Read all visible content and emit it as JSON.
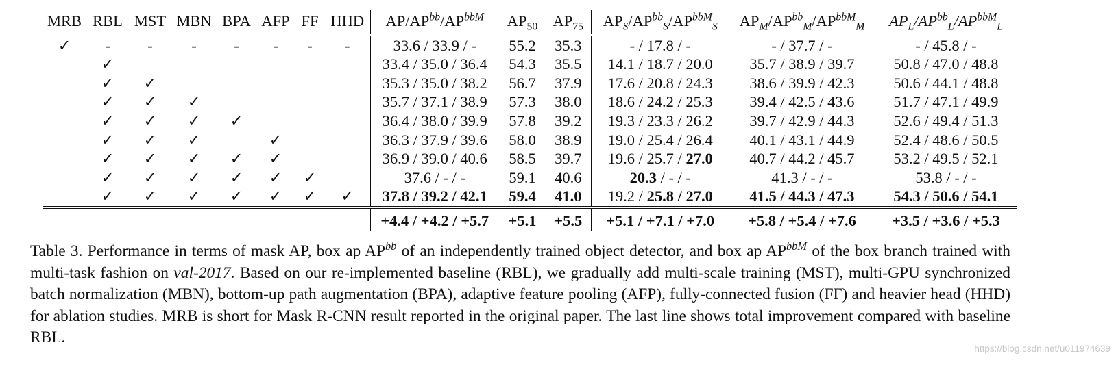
{
  "table": {
    "method_headers": [
      "MRB",
      "RBL",
      "MST",
      "MBN",
      "BPA",
      "AFP",
      "FF",
      "HHD"
    ],
    "metric_headers": {
      "ap": {
        "base": "AP",
        "sep1": "/AP",
        "sup1": "bb",
        "sep2": "/AP",
        "sup2": "bbM"
      },
      "ap50": {
        "base": "AP",
        "sub": "50"
      },
      "ap75": {
        "base": "AP",
        "sub": "75"
      },
      "aps": {
        "base": "AP",
        "sub": "S",
        "sep1": "/AP",
        "sup1": "bb",
        "sub1": "S",
        "sep2": "/AP",
        "sup2": "bbM",
        "sub2": "S"
      },
      "apm": {
        "base": "AP",
        "sub": "M",
        "sep1": "/AP",
        "sup1": "bb",
        "sub1": "M",
        "sep2": "/AP",
        "sup2": "bbM",
        "sub2": "M"
      },
      "apl": {
        "base": "AP",
        "sub": "L",
        "sep1": "/AP",
        "sup1": "bb",
        "sub1": "L",
        "sep2": "/AP",
        "sup2": "bbM",
        "sub2": "L"
      }
    },
    "check_mark": "✓",
    "rows": [
      {
        "methods": [
          "✓",
          "-",
          "-",
          "-",
          "-",
          "-",
          "-",
          "-"
        ],
        "ap": "33.6 / 33.9 /   -",
        "ap50": "55.2",
        "ap75": "35.3",
        "aps": "-   / 17.8 /   -",
        "apm": "-   / 37.7 /   -",
        "apl": "-   / 45.8 /   -"
      },
      {
        "methods": [
          "",
          "✓",
          "",
          "",
          "",
          "",
          "",
          ""
        ],
        "ap": "33.4 / 35.0 / 36.4",
        "ap50": "54.3",
        "ap75": "35.5",
        "aps": "14.1 / 18.7 / 20.0",
        "apm": "35.7 / 38.9 / 39.7",
        "apl": "50.8 / 47.0 / 48.8"
      },
      {
        "methods": [
          "",
          "✓",
          "✓",
          "",
          "",
          "",
          "",
          ""
        ],
        "ap": "35.3 / 35.0 / 38.2",
        "ap50": "56.7",
        "ap75": "37.9",
        "aps": "17.6 / 20.8 / 24.3",
        "apm": "38.6 / 39.9 / 42.3",
        "apl": "50.6 / 44.1 / 48.8"
      },
      {
        "methods": [
          "",
          "✓",
          "✓",
          "✓",
          "",
          "",
          "",
          ""
        ],
        "ap": "35.7 / 37.1 / 38.9",
        "ap50": "57.3",
        "ap75": "38.0",
        "aps": "18.6 / 24.2 / 25.3",
        "apm": "39.4 / 42.5 / 43.6",
        "apl": "51.7 / 47.1 / 49.9"
      },
      {
        "methods": [
          "",
          "✓",
          "✓",
          "✓",
          "✓",
          "",
          "",
          ""
        ],
        "ap": "36.4 / 38.0 / 39.9",
        "ap50": "57.8",
        "ap75": "39.2",
        "aps": "19.3 / 23.3 / 26.2",
        "apm": "39.7 / 42.9 / 44.3",
        "apl": "52.6 / 49.4 / 51.3"
      },
      {
        "methods": [
          "",
          "✓",
          "✓",
          "✓",
          "",
          "✓",
          "",
          ""
        ],
        "ap": "36.3 / 37.9 / 39.6",
        "ap50": "58.0",
        "ap75": "38.9",
        "aps": "19.0 / 25.4 / 26.4",
        "apm": "40.1 / 43.1 / 44.9",
        "apl": "52.4 / 48.6 / 50.5"
      },
      {
        "methods": [
          "",
          "✓",
          "✓",
          "✓",
          "✓",
          "✓",
          "",
          ""
        ],
        "ap": "36.9 / 39.0 / 40.6",
        "ap50": "58.5",
        "ap75": "39.7",
        "aps_a": "19.6 / 25.7 / ",
        "aps_b": "27.0",
        "apm": "40.7 / 44.2 / 45.7",
        "apl": "53.2 / 49.5 / 52.1"
      },
      {
        "methods": [
          "",
          "✓",
          "✓",
          "✓",
          "✓",
          "✓",
          "✓",
          ""
        ],
        "ap": "37.6 /   -   /   -",
        "ap50": "59.1",
        "ap75": "40.6",
        "aps_a": "20.3",
        "aps_b": " /   -   /   -",
        "apm": "41.3 /   -   /   -",
        "apl": "53.8 /   -   /   -"
      },
      {
        "methods": [
          "",
          "✓",
          "✓",
          "✓",
          "✓",
          "✓",
          "✓",
          "✓"
        ],
        "ap": "37.8 / 39.2 / 42.1",
        "ap50": "59.4",
        "ap75": "41.0",
        "aps_a": "19.2 / ",
        "aps_b": "25.8 / 27.0",
        "apm": "41.5 / 44.3 / 47.3",
        "apl": "54.3 / 50.6 / 54.1"
      }
    ],
    "improvement": {
      "ap": "+4.4 / +4.2 / +5.7",
      "ap50": "+5.1",
      "ap75": "+5.5",
      "aps": "+5.1 / +7.1 / +7.0",
      "apm": "+5.8 / +5.4 / +7.6",
      "apl": "+3.5 / +3.6 / +5.3"
    }
  },
  "caption": {
    "label": "Table 3.",
    "text1": " Performance in terms of mask AP, box ap AP",
    "sup1": "bb",
    "text2": " of an independently trained object detector, and box ap AP",
    "sup2": "bbM",
    "text3": " of the box branch trained with multi-task fashion on ",
    "dataset": "val-2017",
    "text4": ". Based on our re-implemented baseline (RBL), we gradually add multi-scale training (MST), multi-GPU synchronized batch normalization (MBN), bottom-up path augmentation (BPA), adaptive feature pooling (AFP), fully-connected fusion (FF) and heavier head (HHD) for ablation studies. MRB is short for Mask R-CNN result reported in the original paper. The last line shows total improvement compared with baseline RBL."
  },
  "watermark": "https://blog.csdn.net/u011974639"
}
